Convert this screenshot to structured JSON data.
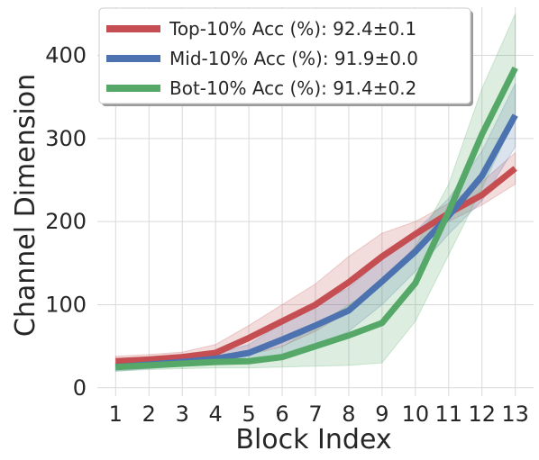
{
  "chart_data": {
    "type": "line",
    "xlabel": "Block Index",
    "ylabel": "Channel Dimension",
    "x": [
      1,
      2,
      3,
      4,
      5,
      6,
      7,
      8,
      9,
      10,
      11,
      12,
      13
    ],
    "x_tick_labels": [
      "1",
      "2",
      "3",
      "4",
      "5",
      "6",
      "7",
      "8",
      "9",
      "10",
      "11",
      "12",
      "13"
    ],
    "xlim": [
      0.45,
      13.55
    ],
    "ylim": [
      -10,
      458
    ],
    "y_ticks": [
      0,
      100,
      200,
      300,
      400
    ],
    "y_tick_labels": [
      "0",
      "100",
      "200",
      "300",
      "400"
    ],
    "grid": true,
    "legend_position": "top-left",
    "series": [
      {
        "name": "Top-10% Acc (%): 92.4±0.1",
        "color": "#c44e52",
        "values": [
          32,
          34,
          37,
          42,
          60,
          80,
          100,
          127,
          158,
          185,
          210,
          232,
          264
        ],
        "band_low": [
          26,
          28,
          31,
          32,
          40,
          50,
          68,
          92,
          130,
          170,
          200,
          220,
          245
        ],
        "band_high": [
          38,
          40,
          43,
          52,
          75,
          100,
          125,
          158,
          186,
          200,
          222,
          248,
          283
        ]
      },
      {
        "name": "Mid-10% Acc (%): 91.9±0.0",
        "color": "#4c72b0",
        "values": [
          25,
          28,
          31,
          35,
          42,
          58,
          75,
          93,
          128,
          164,
          207,
          255,
          328
        ],
        "band_low": [
          20,
          23,
          26,
          29,
          33,
          38,
          50,
          68,
          100,
          140,
          185,
          225,
          290
        ],
        "band_high": [
          30,
          33,
          36,
          41,
          52,
          78,
          100,
          120,
          156,
          188,
          228,
          285,
          366
        ]
      },
      {
        "name": "Bot-10% Acc (%): 91.4±0.2",
        "color": "#55a868",
        "values": [
          25,
          27,
          29,
          31,
          32,
          37,
          50,
          63,
          78,
          126,
          212,
          305,
          385
        ],
        "band_low": [
          20,
          22,
          23,
          24,
          24,
          25,
          26,
          27,
          30,
          80,
          160,
          240,
          325
        ],
        "band_high": [
          30,
          32,
          35,
          38,
          40,
          49,
          74,
          100,
          126,
          170,
          245,
          360,
          450
        ]
      }
    ]
  }
}
